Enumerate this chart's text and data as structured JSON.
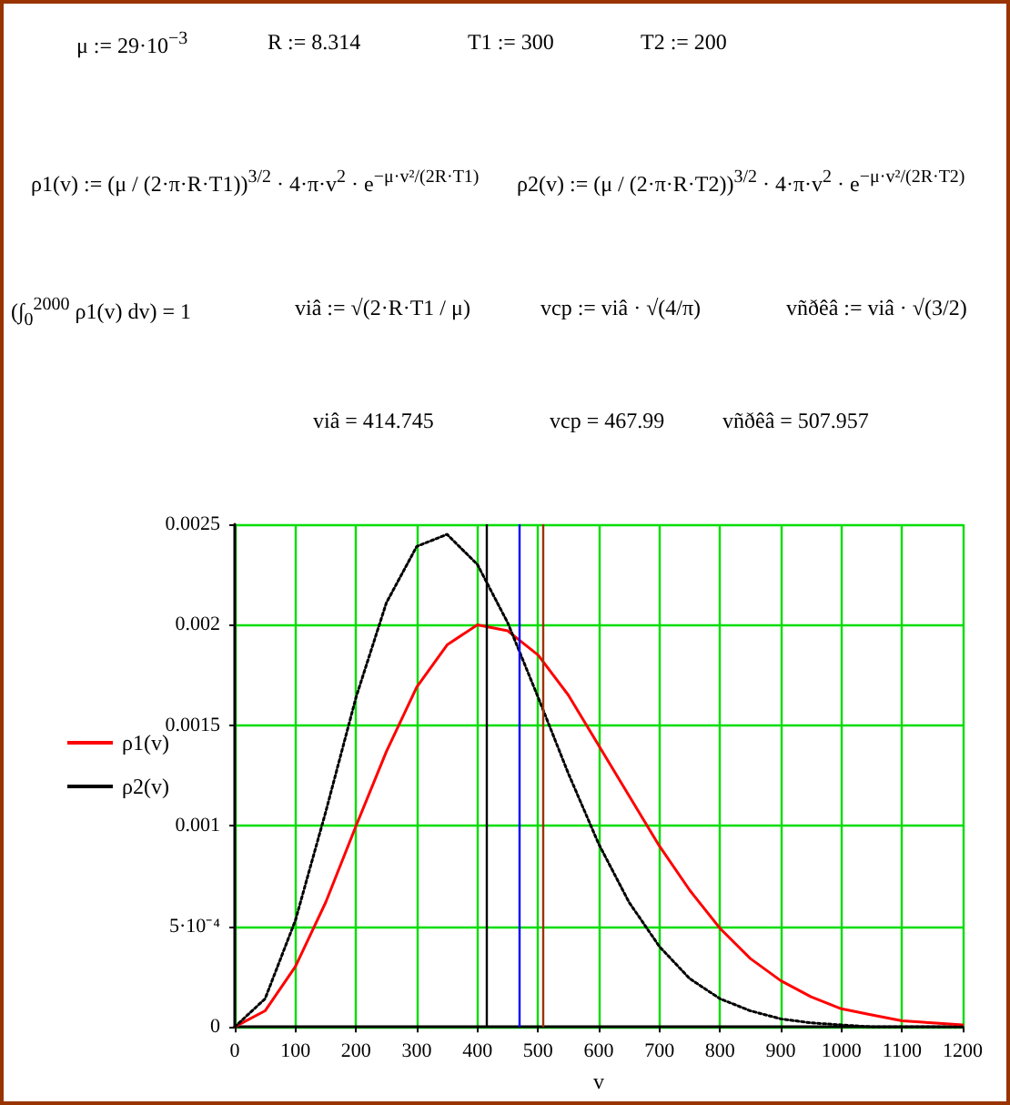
{
  "chart_data": {
    "type": "line",
    "annotations": [
      "μ := 29·10$^{−3}$",
      "R := 8.314",
      "T1 := 300",
      "T2 := 200",
      "ρ1(v) := (μ / (2·π·R·T1))$^{3/2}$ · 4·π·v$^{2}$ · e$^{−μ·v²/(2R·T1)}$",
      "ρ2(v) := (μ / (2·π·R·T2))$^{3/2}$ · 4·π·v$^{2}$ · e$^{−μ·v²/(2R·T2)}$",
      "(∫$_{0}$$^{2000}$ ρ1(v) dv) = 1",
      "viâ := √(2·R·T1 / μ)",
      "vcp := viâ · √(4/π)",
      "vñðêâ := viâ · √(3/2)",
      "viâ = 414.745",
      "vcp = 467.99",
      "vñðêâ = 507.957"
    ],
    "xlabel": "v",
    "x": [
      0,
      50,
      100,
      150,
      200,
      250,
      300,
      350,
      400,
      450,
      500,
      550,
      600,
      650,
      700,
      750,
      800,
      850,
      900,
      950,
      1000,
      1050,
      1100,
      1150,
      1200
    ],
    "series": [
      {
        "name": "ρ1(v)",
        "color": "#ff0000",
        "line_style": "solid",
        "values": [
          0,
          8e-05,
          0.0003,
          0.00062,
          0.001,
          0.00137,
          0.00169,
          0.0019,
          0.002,
          0.00197,
          0.00185,
          0.00165,
          0.0014,
          0.00115,
          0.0009,
          0.00068,
          0.00049,
          0.00034,
          0.00023,
          0.00015,
          9e-05,
          6e-05,
          3e-05,
          2e-05,
          1e-05
        ]
      },
      {
        "name": "ρ2(v)",
        "color": "#000000",
        "line_style": "dotted",
        "values": [
          0,
          0.00014,
          0.00053,
          0.00107,
          0.00164,
          0.00211,
          0.00239,
          0.00245,
          0.0023,
          0.00201,
          0.00164,
          0.00126,
          0.00091,
          0.00062,
          0.0004,
          0.00024,
          0.00014,
          8e-05,
          4e-05,
          2e-05,
          1e-05,
          0,
          0,
          0,
          0
        ]
      }
    ],
    "xlim": [
      0,
      1200
    ],
    "xticks": [
      0,
      100,
      200,
      300,
      400,
      500,
      600,
      700,
      800,
      900,
      1000,
      1100,
      1200
    ],
    "ylim": [
      0,
      0.0025
    ],
    "yticks": [
      0,
      {
        "value": 0.0005,
        "label": "5·10⁻⁴"
      },
      0.001,
      0.0015,
      0.002,
      0.0025
    ],
    "ref_lines": [
      {
        "axis": "x",
        "value": 414.745,
        "color": "#000000"
      },
      {
        "axis": "x",
        "value": 467.99,
        "color": "#0000ff"
      },
      {
        "axis": "x",
        "value": 507.957,
        "color": "#993300"
      }
    ],
    "grid": true,
    "legend": "left",
    "marker": "none"
  }
}
